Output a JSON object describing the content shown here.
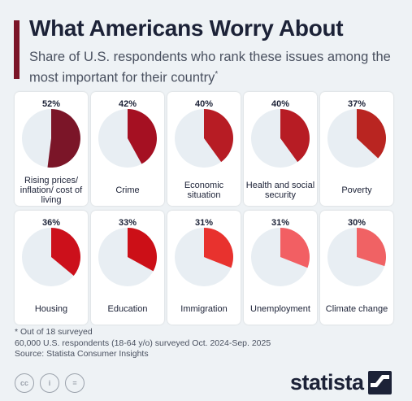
{
  "header": {
    "title": "What Americans Worry About",
    "subtitle": "Share of U.S. respondents who rank these issues among the most important for their country",
    "subtitle_mark": "*"
  },
  "chart_data": {
    "type": "pie",
    "title": "What Americans Worry About",
    "subtitle": "Share of U.S. respondents who rank these issues among the most important for their country*",
    "unit": "%",
    "categories": [
      "Rising prices/ inflation/ cost of living",
      "Crime",
      "Economic situation",
      "Health and social security",
      "Poverty",
      "Housing",
      "Education",
      "Immigration",
      "Unemployment",
      "Climate change"
    ],
    "values": [
      52,
      42,
      40,
      40,
      37,
      36,
      33,
      31,
      31,
      30
    ],
    "labels": [
      "52%",
      "42%",
      "40%",
      "40%",
      "37%",
      "36%",
      "33%",
      "31%",
      "31%",
      "30%"
    ],
    "colors": [
      "#7b1528",
      "#a51022",
      "#b71c24",
      "#b71c24",
      "#b92521",
      "#cc101b",
      "#cc0f17",
      "#e8322e",
      "#f25f63",
      "#f06264"
    ],
    "remainder_color": "#e8eef3"
  },
  "footnotes": {
    "line1": "* Out of 18 surveyed",
    "line2": "60,000 U.S. respondents (18-64 y/o) surveyed Oct. 2024-Sep. 2025",
    "line3": "Source: Statista Consumer Insights"
  },
  "licenses": {
    "cc": "cc",
    "by": "i",
    "nd": "="
  },
  "brand": {
    "name": "statista"
  }
}
